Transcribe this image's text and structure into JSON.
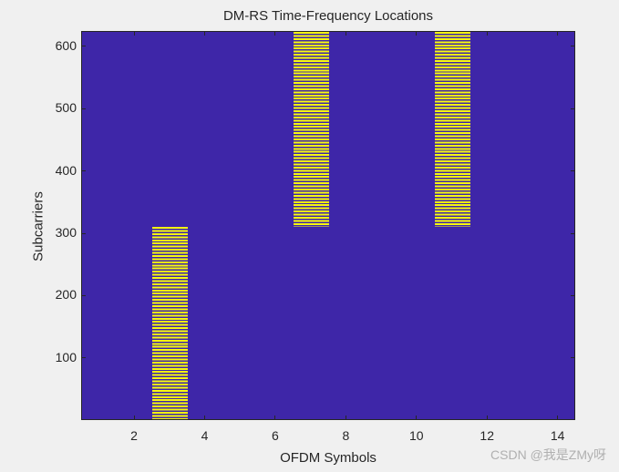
{
  "chart_data": {
    "type": "heatmap",
    "title": "DM-RS Time-Frequency Locations",
    "xlabel": "OFDM Symbols",
    "ylabel": "Subcarriers",
    "xlim": [
      0.5,
      14.5
    ],
    "ylim": [
      0.5,
      624.5
    ],
    "xticks": [
      2,
      4,
      6,
      8,
      10,
      12,
      14
    ],
    "yticks": [
      100,
      200,
      300,
      400,
      500,
      600
    ],
    "colors": {
      "background": "#3e26a8",
      "dmrs": "#f9fb0e"
    },
    "dmrs_regions": [
      {
        "symbol": 3,
        "subcarrier_start": 1,
        "subcarrier_end": 312,
        "pattern": "every other subcarrier"
      },
      {
        "symbol": 7,
        "subcarrier_start": 313,
        "subcarrier_end": 624,
        "pattern": "every other subcarrier"
      },
      {
        "symbol": 11,
        "subcarrier_start": 313,
        "subcarrier_end": 624,
        "pattern": "every other subcarrier"
      }
    ],
    "grid": false
  },
  "labels": {
    "title": "DM-RS Time-Frequency Locations",
    "xlabel": "OFDM Symbols",
    "ylabel": "Subcarriers",
    "xticks": [
      "2",
      "4",
      "6",
      "8",
      "10",
      "12",
      "14"
    ],
    "yticks": [
      "100",
      "200",
      "300",
      "400",
      "500",
      "600"
    ]
  },
  "watermark": "CSDN @我是ZMy呀"
}
